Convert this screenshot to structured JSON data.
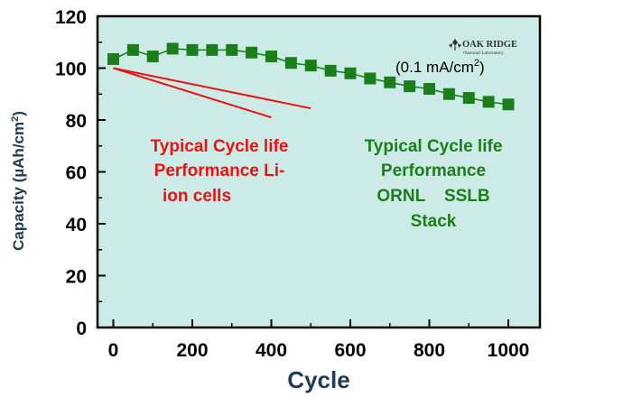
{
  "colors": {
    "plot_background": "#cdebe6",
    "ornl_series": "#1a7f1a",
    "li_ion_lines": "#ee1111",
    "axis_title": "#1f3b57"
  },
  "logo": {
    "line1": "OAK RIDGE",
    "line2": "National Laboratory",
    "icon": "oak-leaf-icon"
  },
  "annotations": {
    "condition_prefix": "(0.1 mA/cm",
    "condition_sup": "2",
    "condition_suffix": ")",
    "li_ion": [
      "Typical Cycle life",
      "Performance Li-",
      "ion cells"
    ],
    "ornl": [
      "Typical Cycle life",
      "Performance",
      "ORNL    SSLB",
      "Stack"
    ]
  },
  "chart_data": {
    "type": "line",
    "xlabel": "Cycle",
    "ylabel_main": "Capacity (µAh/cm",
    "ylabel_sup": "2",
    "ylabel_end": ")",
    "xlim": [
      -40,
      1080
    ],
    "ylim": [
      0,
      120
    ],
    "x_ticks": [
      "0",
      "200",
      "400",
      "600",
      "800",
      "1000"
    ],
    "x_tick_values": [
      0,
      200,
      400,
      600,
      800,
      1000
    ],
    "y_ticks": [
      "0",
      "20",
      "40",
      "60",
      "80",
      "100",
      "120"
    ],
    "y_tick_values": [
      0,
      20,
      40,
      60,
      80,
      100,
      120
    ],
    "grid": false,
    "series": [
      {
        "x": [
          0,
          50,
          100,
          150,
          200,
          250,
          300,
          350,
          400,
          450,
          500,
          550,
          600,
          650,
          700,
          750,
          800,
          850,
          900,
          950,
          1000
        ],
        "y": [
          103.5,
          107,
          104.5,
          107.5,
          107,
          107,
          107,
          106,
          104.5,
          102,
          101,
          99,
          98,
          96,
          94.5,
          93,
          92,
          90,
          88.5,
          87,
          86
        ],
        "marker": "square"
      },
      {
        "x": [
          0,
          400
        ],
        "y": [
          100,
          81
        ]
      },
      {
        "x": [
          0,
          500
        ],
        "y": [
          100,
          84.5
        ]
      }
    ]
  }
}
